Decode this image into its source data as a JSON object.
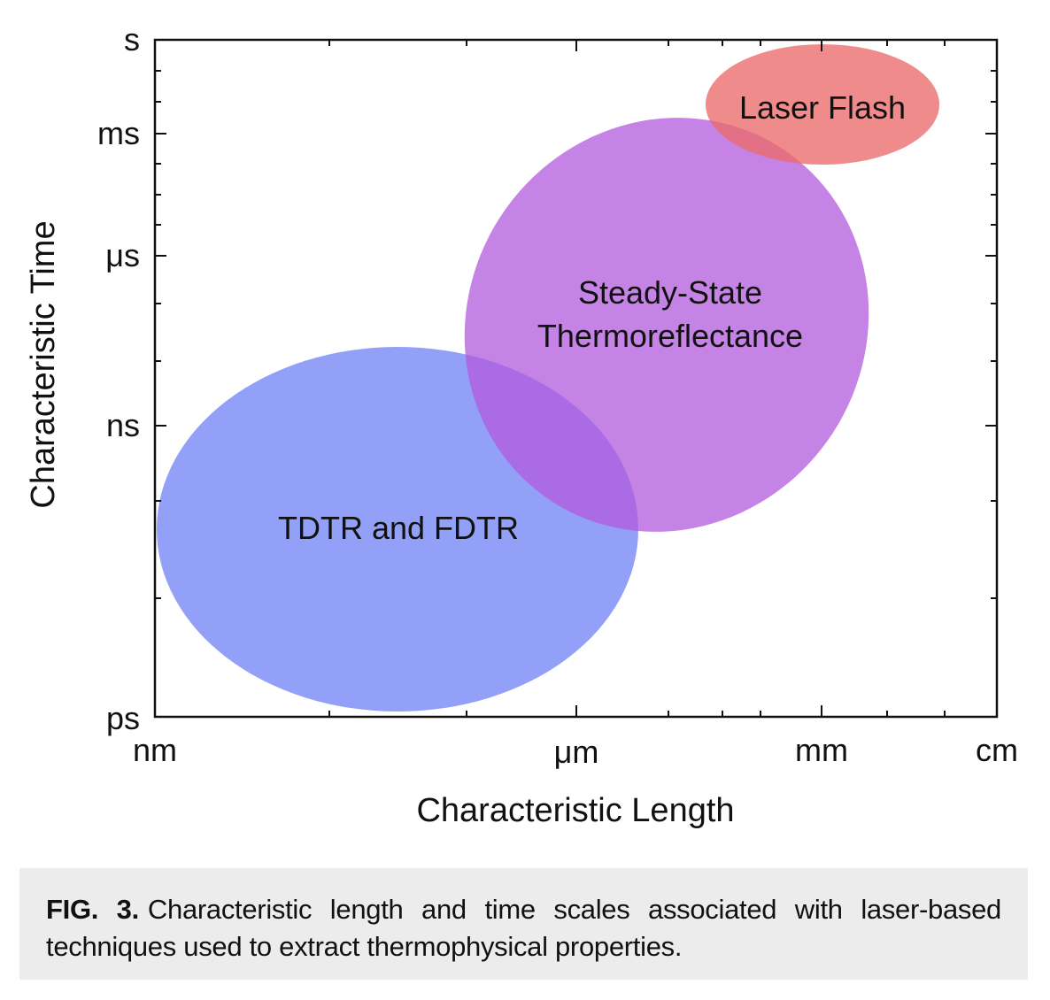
{
  "figure": {
    "ylabel": "Characteristic Time",
    "xlabel": "Characteristic Length",
    "y_ticks": [
      "s",
      "ms",
      "μs",
      "ns",
      "ps"
    ],
    "x_ticks": [
      "nm",
      "μm",
      "mm",
      "cm"
    ],
    "regions": [
      {
        "name": "tdtr",
        "label_lines": [
          "TDTR and FDTR"
        ],
        "color": "#7a8cf5"
      },
      {
        "name": "steady-state",
        "label_lines": [
          "Steady-State",
          "Thermoreflectance"
        ],
        "color": "#b35ade"
      },
      {
        "name": "laser-flash",
        "label_lines": [
          "Laser Flash"
        ],
        "color": "#ec6a6a"
      }
    ]
  },
  "caption": {
    "label": "FIG. 3.",
    "text": "Characteristic length and time scales associated with laser-based techniques used to extract thermophysical properties."
  }
}
